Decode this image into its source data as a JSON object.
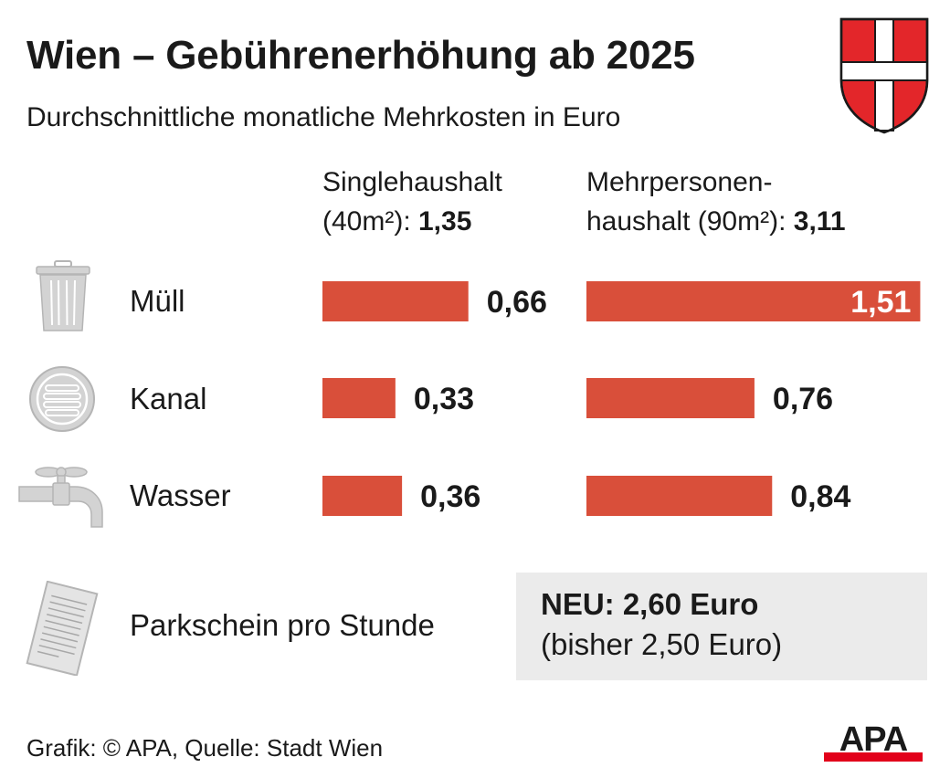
{
  "header": {
    "title": "Wien – Gebührenerhöhung ab 2025",
    "subtitle": "Durchschnittliche monatliche Mehrkosten in Euro"
  },
  "columns": [
    {
      "line1": "Singlehaushalt",
      "line2_prefix": "(40m²): ",
      "total": "1,35"
    },
    {
      "line1": "Mehrpersonen-",
      "line2_prefix": "haushalt (90m²): ",
      "total": "3,11"
    }
  ],
  "rows": [
    {
      "label": "Müll",
      "icon": "trash-can-icon"
    },
    {
      "label": "Kanal",
      "icon": "manhole-cover-icon"
    },
    {
      "label": "Wasser",
      "icon": "water-tap-icon"
    }
  ],
  "chart_data": {
    "type": "bar",
    "orientation": "horizontal",
    "unit": "Euro",
    "categories": [
      "Müll",
      "Kanal",
      "Wasser"
    ],
    "series": [
      {
        "name": "Singlehaushalt (40m²): 1,35",
        "values": [
          0.66,
          0.33,
          0.36
        ],
        "labels": [
          "0,66",
          "0,33",
          "0,36"
        ]
      },
      {
        "name": "Mehrpersonenhaushalt (90m²): 3,11",
        "values": [
          1.51,
          0.76,
          0.84
        ],
        "labels": [
          "1,51",
          "0,76",
          "0,84"
        ]
      }
    ],
    "bar_color": "#d94f3a"
  },
  "parking": {
    "label": "Parkschein pro Stunde",
    "new_value": "NEU: 2,60 Euro",
    "old_value": "(bisher 2,50 Euro)",
    "icon": "parking-ticket-icon"
  },
  "footer": {
    "source": "Grafik: © APA, Quelle: Stadt Wien",
    "logo_text": "APA"
  },
  "colors": {
    "bar": "#d94f3a",
    "coat_red": "#e3262a",
    "icon_gray": "#c8c8c8",
    "box_gray": "#ebebeb",
    "logo_red": "#e2001a"
  }
}
